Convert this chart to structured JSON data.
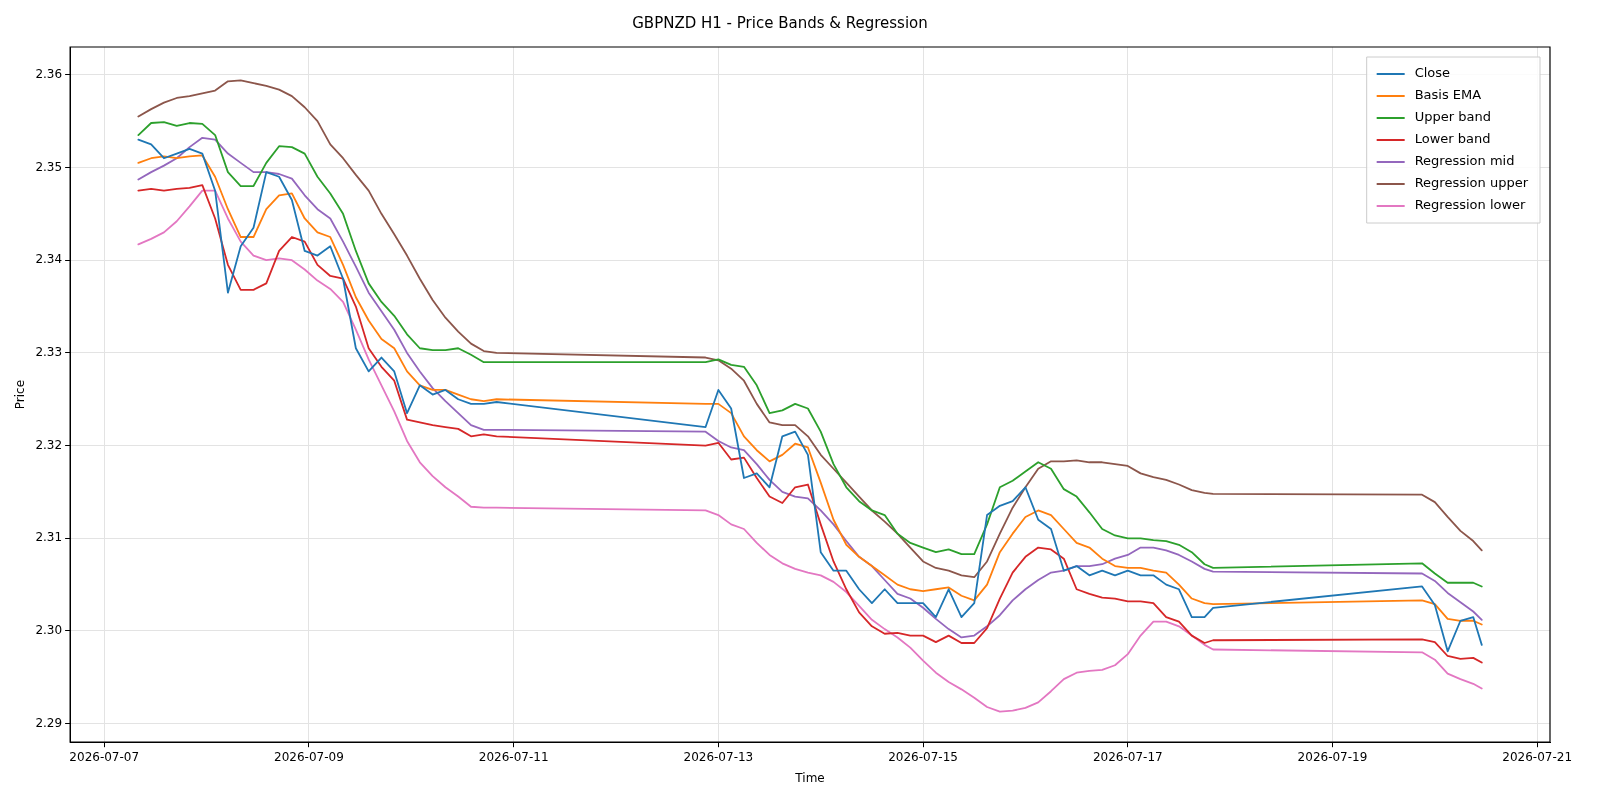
{
  "chart_data": {
    "type": "line",
    "title": "GBPNZD H1 - Price Bands & Regression",
    "xlabel": "Time",
    "ylabel": "Price",
    "x": [
      "2026-07-07T08:00",
      "2026-07-07T11:00",
      "2026-07-07T14:00",
      "2026-07-07T17:00",
      "2026-07-07T20:00",
      "2026-07-07T23:00",
      "2026-07-08T02:00",
      "2026-07-08T05:00",
      "2026-07-08T08:00",
      "2026-07-08T11:00",
      "2026-07-08T14:00",
      "2026-07-08T17:00",
      "2026-07-08T20:00",
      "2026-07-08T23:00",
      "2026-07-09T02:00",
      "2026-07-09T05:00",
      "2026-07-09T08:00",
      "2026-07-09T11:00",
      "2026-07-09T14:00",
      "2026-07-09T17:00",
      "2026-07-09T20:00",
      "2026-07-09T23:00",
      "2026-07-10T02:00",
      "2026-07-10T05:00",
      "2026-07-10T08:00",
      "2026-07-10T11:00",
      "2026-07-10T14:00",
      "2026-07-10T17:00",
      "2026-07-10T20:00",
      "2026-07-12T21:00",
      "2026-07-13T00:00",
      "2026-07-13T03:00",
      "2026-07-13T06:00",
      "2026-07-13T09:00",
      "2026-07-13T12:00",
      "2026-07-13T15:00",
      "2026-07-13T18:00",
      "2026-07-13T21:00",
      "2026-07-14T00:00",
      "2026-07-14T03:00",
      "2026-07-14T06:00",
      "2026-07-14T09:00",
      "2026-07-14T12:00",
      "2026-07-14T15:00",
      "2026-07-14T18:00",
      "2026-07-14T21:00",
      "2026-07-15T00:00",
      "2026-07-15T03:00",
      "2026-07-15T06:00",
      "2026-07-15T09:00",
      "2026-07-15T12:00",
      "2026-07-15T15:00",
      "2026-07-15T18:00",
      "2026-07-15T21:00",
      "2026-07-16T00:00",
      "2026-07-16T03:00",
      "2026-07-16T06:00",
      "2026-07-16T09:00",
      "2026-07-16T12:00",
      "2026-07-16T15:00",
      "2026-07-16T18:00",
      "2026-07-16T21:00",
      "2026-07-17T00:00",
      "2026-07-17T03:00",
      "2026-07-17T06:00",
      "2026-07-17T09:00",
      "2026-07-17T12:00",
      "2026-07-17T15:00",
      "2026-07-17T18:00",
      "2026-07-17T20:00",
      "2026-07-19T21:00",
      "2026-07-20T00:00",
      "2026-07-20T03:00",
      "2026-07-20T06:00",
      "2026-07-20T09:00",
      "2026-07-20T11:00"
    ],
    "series": [
      {
        "name": "Close",
        "color": "#1f77b4",
        "values": [
          2.353,
          2.3525,
          2.351,
          2.3515,
          2.352,
          2.3515,
          2.3475,
          2.3365,
          2.3415,
          2.3435,
          2.3495,
          2.349,
          2.3465,
          2.341,
          2.3405,
          2.3415,
          2.338,
          2.3305,
          2.328,
          2.3295,
          2.328,
          2.3235,
          2.3265,
          2.3255,
          2.326,
          2.325,
          2.3245,
          2.3245,
          2.3247,
          2.322,
          2.326,
          2.324,
          2.3165,
          2.317,
          2.3155,
          2.321,
          2.3215,
          2.319,
          2.3085,
          2.3065,
          2.3065,
          2.3045,
          2.303,
          2.3045,
          2.303,
          2.303,
          2.303,
          2.3015,
          2.3045,
          2.3015,
          2.303,
          2.3125,
          2.3135,
          2.314,
          2.3155,
          2.312,
          2.311,
          2.3065,
          2.307,
          2.306,
          2.3065,
          2.306,
          2.3065,
          2.306,
          2.306,
          2.305,
          2.3045,
          2.3015,
          2.3015,
          2.3025,
          2.3048,
          2.3028,
          2.2978,
          2.3011,
          2.3015,
          2.2985
        ]
      },
      {
        "name": "Basis EMA",
        "color": "#ff7f0e",
        "values": [
          2.3505,
          2.351,
          2.3512,
          2.351,
          2.3512,
          2.3513,
          2.349,
          2.3455,
          2.3425,
          2.3425,
          2.3455,
          2.347,
          2.3472,
          2.3445,
          2.343,
          2.3425,
          2.3395,
          2.336,
          2.3335,
          2.3315,
          2.3305,
          2.328,
          2.3265,
          2.326,
          2.326,
          2.3255,
          2.325,
          2.3248,
          2.325,
          2.3245,
          2.3245,
          2.3235,
          2.321,
          2.3195,
          2.3183,
          2.319,
          2.3202,
          2.3198,
          2.316,
          2.312,
          2.3093,
          2.308,
          2.307,
          2.306,
          2.305,
          2.3045,
          2.3043,
          2.3045,
          2.3047,
          2.3038,
          2.3033,
          2.305,
          2.3085,
          2.3105,
          2.3123,
          2.313,
          2.3125,
          2.311,
          2.3095,
          2.309,
          2.3078,
          2.307,
          2.3068,
          2.3068,
          2.3065,
          2.3063,
          2.305,
          2.3035,
          2.303,
          2.3029,
          2.3033,
          2.3029,
          2.3013,
          2.3011,
          2.3011,
          2.3007
        ]
      },
      {
        "name": "Upper band",
        "color": "#2ca02c",
        "values": [
          2.3535,
          2.3548,
          2.3549,
          2.3545,
          2.3548,
          2.3547,
          2.3535,
          2.3495,
          2.348,
          2.348,
          2.3505,
          2.3523,
          2.3522,
          2.3515,
          2.349,
          2.3472,
          2.345,
          2.341,
          2.3375,
          2.3355,
          2.334,
          2.332,
          2.3305,
          2.3303,
          2.3303,
          2.3305,
          2.3298,
          2.329,
          2.329,
          2.329,
          2.3293,
          2.3287,
          2.3285,
          2.3265,
          2.3235,
          2.3238,
          2.3245,
          2.324,
          2.3215,
          2.318,
          2.3155,
          2.314,
          2.313,
          2.3125,
          2.3105,
          2.3095,
          2.309,
          2.3085,
          2.3088,
          2.3083,
          2.3083,
          2.3115,
          2.3155,
          2.3162,
          2.3172,
          2.3182,
          2.3175,
          2.3153,
          2.3145,
          2.3128,
          2.311,
          2.3103,
          2.31,
          2.31,
          2.3098,
          2.3097,
          2.3093,
          2.3085,
          2.3072,
          2.3068,
          2.3073,
          2.3062,
          2.3052,
          2.3052,
          2.3052,
          2.3048
        ]
      },
      {
        "name": "Lower band",
        "color": "#d62728",
        "values": [
          2.3475,
          2.3477,
          2.3475,
          2.3477,
          2.3478,
          2.3481,
          2.3445,
          2.3395,
          2.3368,
          2.3368,
          2.3375,
          2.341,
          2.3425,
          2.342,
          2.3395,
          2.3383,
          2.338,
          2.335,
          2.3305,
          2.3285,
          2.327,
          2.3228,
          2.3225,
          2.3222,
          2.322,
          2.3218,
          2.321,
          2.3212,
          2.321,
          2.32,
          2.3203,
          2.3185,
          2.3187,
          2.3165,
          2.3145,
          2.3138,
          2.3155,
          2.3158,
          2.3115,
          2.3075,
          2.3045,
          2.302,
          2.3005,
          2.2997,
          2.2998,
          2.2995,
          2.2995,
          2.2988,
          2.2995,
          2.2987,
          2.2987,
          2.3003,
          2.3035,
          2.3063,
          2.308,
          2.309,
          2.3088,
          2.3078,
          2.3045,
          2.304,
          2.3036,
          2.3035,
          2.3032,
          2.3032,
          2.303,
          2.3015,
          2.301,
          2.2995,
          2.2987,
          2.299,
          2.2991,
          2.2988,
          2.2973,
          2.297,
          2.2971,
          2.2966
        ]
      },
      {
        "name": "Regression mid",
        "color": "#9467bd",
        "values": [
          2.3487,
          2.3495,
          2.3502,
          2.351,
          2.3522,
          2.3532,
          2.353,
          2.3515,
          2.3505,
          2.3495,
          2.3495,
          2.3493,
          2.3488,
          2.347,
          2.3455,
          2.3445,
          2.342,
          2.3393,
          2.3365,
          2.3345,
          2.3325,
          2.33,
          2.328,
          2.3262,
          2.3248,
          2.3235,
          2.3222,
          2.3217,
          2.3217,
          2.3215,
          2.3205,
          2.3198,
          2.3195,
          2.318,
          2.3163,
          2.315,
          2.3145,
          2.3143,
          2.313,
          2.3115,
          2.3097,
          2.308,
          2.307,
          2.3055,
          2.304,
          2.3035,
          2.3025,
          2.3013,
          2.3002,
          2.2993,
          2.2995,
          2.3005,
          2.3017,
          2.3033,
          2.3045,
          2.3055,
          2.3063,
          2.3065,
          2.307,
          2.307,
          2.3072,
          2.3078,
          2.3082,
          2.309,
          2.309,
          2.3087,
          2.3082,
          2.3075,
          2.3067,
          2.3064,
          2.3062,
          2.3054,
          2.3041,
          2.3031,
          2.3021,
          2.3012
        ]
      },
      {
        "name": "Regression upper",
        "color": "#8c564b",
        "values": [
          2.3555,
          2.3563,
          2.357,
          2.3575,
          2.3577,
          2.358,
          2.3583,
          2.3593,
          2.3594,
          2.3591,
          2.3588,
          2.3584,
          2.3577,
          2.3565,
          2.355,
          2.3525,
          2.351,
          2.3492,
          2.3475,
          2.345,
          2.3428,
          2.3405,
          2.338,
          2.3357,
          2.3338,
          2.3323,
          2.331,
          2.3302,
          2.33,
          2.3295,
          2.3292,
          2.3283,
          2.327,
          2.3245,
          2.3225,
          2.3222,
          2.3222,
          2.321,
          2.319,
          2.3175,
          2.316,
          2.3145,
          2.313,
          2.3118,
          2.3105,
          2.309,
          2.3075,
          2.3068,
          2.3065,
          2.306,
          2.3058,
          2.3075,
          2.3105,
          2.3133,
          2.3155,
          2.3175,
          2.3183,
          2.3183,
          2.3184,
          2.3182,
          2.3182,
          2.318,
          2.3178,
          2.317,
          2.3166,
          2.3163,
          2.3158,
          2.3152,
          2.3149,
          2.3148,
          2.3147,
          2.3139,
          2.3123,
          2.3108,
          2.3097,
          2.3087
        ]
      },
      {
        "name": "Regression lower",
        "color": "#e377c2",
        "values": [
          2.3417,
          2.3423,
          2.343,
          2.3442,
          2.3458,
          2.3475,
          2.3475,
          2.3445,
          2.342,
          2.3405,
          2.34,
          2.3402,
          2.34,
          2.339,
          2.3378,
          2.3369,
          2.3355,
          2.3325,
          2.3293,
          2.3265,
          2.3237,
          2.3205,
          2.3182,
          2.3167,
          2.3155,
          2.3145,
          2.3134,
          2.3133,
          2.3133,
          2.313,
          2.3125,
          2.3115,
          2.311,
          2.3095,
          2.3082,
          2.3073,
          2.3067,
          2.3063,
          2.306,
          2.3053,
          2.3042,
          2.3027,
          2.3012,
          2.3002,
          2.2993,
          2.2982,
          2.2968,
          2.2955,
          2.2945,
          2.2937,
          2.2928,
          2.2918,
          2.2913,
          2.2914,
          2.2917,
          2.2923,
          2.2935,
          2.2948,
          2.2955,
          2.2957,
          2.2958,
          2.2963,
          2.2975,
          2.2995,
          2.301,
          2.301,
          2.3005,
          2.2995,
          2.2985,
          2.298,
          2.2977,
          2.2969,
          2.2954,
          2.2948,
          2.2943,
          2.2938
        ]
      }
    ],
    "xlim": [
      "2026-07-06T16:00",
      "2026-07-21T03:00"
    ],
    "xticks": [
      "2026-07-07",
      "2026-07-09",
      "2026-07-11",
      "2026-07-13",
      "2026-07-15",
      "2026-07-17",
      "2026-07-19",
      "2026-07-21"
    ],
    "ylim": [
      2.288,
      2.363
    ],
    "yticks": [
      2.29,
      {
        "value": 2.3,
        "label": "2.30"
      },
      2.31,
      2.32,
      2.33,
      2.34,
      2.35,
      2.36
    ],
    "grid": true,
    "legend": "top right"
  }
}
